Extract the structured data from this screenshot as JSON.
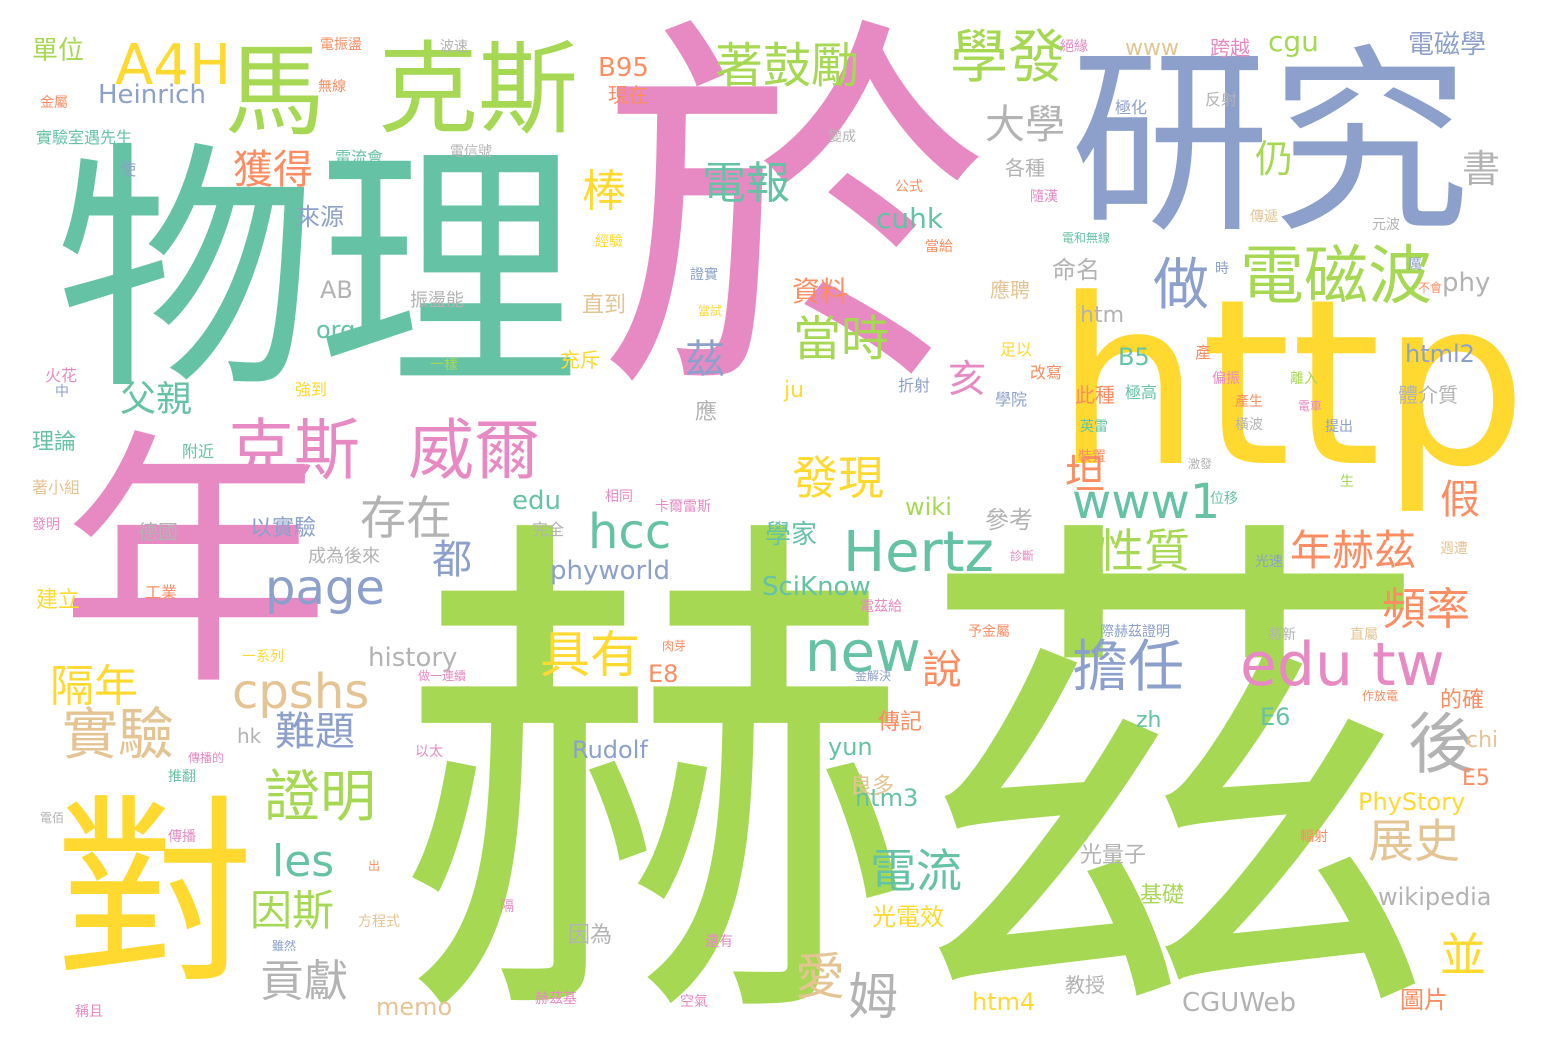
{
  "palette": {
    "green": "#a6d854",
    "teal": "#66c2a5",
    "pink": "#e78ac3",
    "blue": "#8da0cb",
    "yellow": "#ffd92f",
    "orange": "#fc8d62",
    "tan": "#e5c494",
    "gray": "#b3b3b3"
  },
  "words": [
    {
      "text": "於",
      "color": "pink"
    },
    {
      "text": "赫茲",
      "color": "green"
    },
    {
      "text": "物理",
      "color": "teal"
    },
    {
      "text": "研究",
      "color": "blue"
    },
    {
      "text": "年",
      "color": "pink"
    },
    {
      "text": "http",
      "color": "yellow"
    },
    {
      "text": "對",
      "color": "yellow"
    },
    {
      "text": "克斯",
      "color": "green"
    },
    {
      "text": "馬",
      "color": "green"
    },
    {
      "text": "A4H",
      "color": "yellow"
    },
    {
      "text": "學發",
      "color": "green"
    },
    {
      "text": "著鼓勵",
      "color": "green"
    },
    {
      "text": "電磁波",
      "color": "green"
    },
    {
      "text": "克斯",
      "color": "pink"
    },
    {
      "text": "威爾",
      "color": "pink"
    },
    {
      "text": "Hertz",
      "color": "teal"
    },
    {
      "text": "edu tw",
      "color": "pink"
    },
    {
      "text": "www1",
      "color": "teal"
    },
    {
      "text": "hcc",
      "color": "teal"
    },
    {
      "text": "page",
      "color": "blue"
    },
    {
      "text": "cpshs",
      "color": "tan"
    },
    {
      "text": "實驗",
      "color": "tan"
    },
    {
      "text": "證明",
      "color": "green"
    },
    {
      "text": "擔任",
      "color": "blue"
    },
    {
      "text": "new",
      "color": "teal"
    },
    {
      "text": "具有",
      "color": "yellow"
    },
    {
      "text": "後",
      "color": "gray"
    },
    {
      "text": "電報",
      "color": "teal"
    },
    {
      "text": "當時",
      "color": "green"
    },
    {
      "text": "做",
      "color": "blue"
    },
    {
      "text": "大學",
      "color": "gray"
    },
    {
      "text": "獲得",
      "color": "orange"
    },
    {
      "text": "棒",
      "color": "yellow"
    },
    {
      "text": "存在",
      "color": "gray"
    },
    {
      "text": "發現",
      "color": "yellow"
    },
    {
      "text": "性質",
      "color": "green"
    },
    {
      "text": "年赫茲",
      "color": "orange"
    },
    {
      "text": "頻率",
      "color": "orange"
    },
    {
      "text": "隔年",
      "color": "yellow"
    },
    {
      "text": "難題",
      "color": "blue"
    },
    {
      "text": "電流",
      "color": "teal"
    },
    {
      "text": "展史",
      "color": "tan"
    },
    {
      "text": "愛",
      "color": "tan"
    },
    {
      "text": "姆",
      "color": "gray"
    },
    {
      "text": "貢獻",
      "color": "gray"
    },
    {
      "text": "因斯",
      "color": "green"
    },
    {
      "text": "les",
      "color": "teal"
    },
    {
      "text": "並",
      "color": "yellow"
    },
    {
      "text": "都",
      "color": "blue"
    },
    {
      "text": "坦",
      "color": "orange"
    },
    {
      "text": "假",
      "color": "orange"
    },
    {
      "text": "父親",
      "color": "teal"
    },
    {
      "text": "亥",
      "color": "pink"
    },
    {
      "text": "茲",
      "color": "blue"
    },
    {
      "text": "仍",
      "color": "green"
    },
    {
      "text": "書",
      "color": "gray"
    },
    {
      "text": "說",
      "color": "orange"
    },
    {
      "text": "Heinrich",
      "color": "blue"
    },
    {
      "text": "B95",
      "color": "orange"
    },
    {
      "text": "cgu",
      "color": "green"
    },
    {
      "text": "www",
      "color": "tan"
    },
    {
      "text": "跨越",
      "color": "pink"
    },
    {
      "text": "電磁學",
      "color": "blue"
    },
    {
      "text": "單位",
      "color": "green"
    },
    {
      "text": "現在",
      "color": "orange"
    },
    {
      "text": "來源",
      "color": "blue"
    },
    {
      "text": "cuhk",
      "color": "teal"
    },
    {
      "text": "資料",
      "color": "orange"
    },
    {
      "text": "AB",
      "color": "gray"
    },
    {
      "text": "org",
      "color": "teal"
    },
    {
      "text": "命名",
      "color": "gray"
    },
    {
      "text": "htm",
      "color": "gray"
    },
    {
      "text": "B5",
      "color": "teal"
    },
    {
      "text": "html2",
      "color": "blue"
    },
    {
      "text": "phy",
      "color": "gray"
    },
    {
      "text": "直到",
      "color": "tan"
    },
    {
      "text": "應聘",
      "color": "tan"
    },
    {
      "text": "理論",
      "color": "teal"
    },
    {
      "text": "以實驗",
      "color": "blue"
    },
    {
      "text": "成為後來",
      "color": "gray"
    },
    {
      "text": "德國",
      "color": "gray"
    },
    {
      "text": "建立",
      "color": "yellow"
    },
    {
      "text": "edu",
      "color": "teal"
    },
    {
      "text": "wiki",
      "color": "green"
    },
    {
      "text": "參考",
      "color": "gray"
    },
    {
      "text": "學家",
      "color": "teal"
    },
    {
      "text": "SciKnow",
      "color": "teal"
    },
    {
      "text": "phyworld",
      "color": "blue"
    },
    {
      "text": "history",
      "color": "gray"
    },
    {
      "text": "E8",
      "color": "orange"
    },
    {
      "text": "Rudolf",
      "color": "blue"
    },
    {
      "text": "yun",
      "color": "teal"
    },
    {
      "text": "zh",
      "color": "teal"
    },
    {
      "text": "E6",
      "color": "teal"
    },
    {
      "text": "chi",
      "color": "tan"
    },
    {
      "text": "E5",
      "color": "orange"
    },
    {
      "text": "PhyStory",
      "color": "yellow"
    },
    {
      "text": "htm3",
      "color": "teal"
    },
    {
      "text": "傳記",
      "color": "orange"
    },
    {
      "text": "良多",
      "color": "tan"
    },
    {
      "text": "光電效",
      "color": "yellow"
    },
    {
      "text": "光量子",
      "color": "gray"
    },
    {
      "text": "基礎",
      "color": "green"
    },
    {
      "text": "wikipedia",
      "color": "gray"
    },
    {
      "text": "CGUWeb",
      "color": "gray"
    },
    {
      "text": "圖片",
      "color": "orange"
    },
    {
      "text": "htm4",
      "color": "yellow"
    },
    {
      "text": "memo",
      "color": "tan"
    },
    {
      "text": "因為",
      "color": "gray"
    },
    {
      "text": "教授",
      "color": "gray"
    },
    {
      "text": "ju",
      "color": "yellow"
    },
    {
      "text": "hk",
      "color": "gray"
    },
    {
      "text": "應",
      "color": "gray"
    },
    {
      "text": "各種",
      "color": "gray"
    },
    {
      "text": "此種",
      "color": "orange"
    },
    {
      "text": "的確",
      "color": "orange"
    },
    {
      "text": "體介質",
      "color": "gray"
    },
    {
      "text": "充斥",
      "color": "yellow"
    },
    {
      "text": "振盪能",
      "color": "gray"
    },
    {
      "text": "學院",
      "color": "blue"
    },
    {
      "text": "折射",
      "color": "blue"
    },
    {
      "text": "足以",
      "color": "yellow"
    },
    {
      "text": "極高",
      "color": "teal"
    },
    {
      "text": "改寫",
      "color": "orange"
    },
    {
      "text": "產",
      "color": "orange"
    },
    {
      "text": "火花",
      "color": "pink"
    },
    {
      "text": "中",
      "color": "blue"
    },
    {
      "text": "附近",
      "color": "teal"
    },
    {
      "text": "著小組",
      "color": "tan"
    },
    {
      "text": "強到",
      "color": "yellow"
    },
    {
      "text": "一樣",
      "color": "green"
    },
    {
      "text": "發明",
      "color": "pink"
    },
    {
      "text": "完全",
      "color": "gray"
    },
    {
      "text": "卡爾雷斯",
      "color": "pink"
    },
    {
      "text": "相同",
      "color": "pink"
    },
    {
      "text": "工業",
      "color": "orange"
    },
    {
      "text": "電振盪",
      "color": "orange"
    },
    {
      "text": "波速",
      "color": "gray"
    },
    {
      "text": "絕緣",
      "color": "pink"
    },
    {
      "text": "金屬",
      "color": "orange"
    },
    {
      "text": "實驗室遇先生",
      "color": "teal"
    },
    {
      "text": "使",
      "color": "blue"
    },
    {
      "text": "電流會",
      "color": "teal"
    },
    {
      "text": "電信號",
      "color": "gray"
    },
    {
      "text": "無線",
      "color": "orange"
    },
    {
      "text": "變成",
      "color": "gray"
    },
    {
      "text": "極化",
      "color": "blue"
    },
    {
      "text": "反射",
      "color": "gray"
    },
    {
      "text": "公式",
      "color": "orange"
    },
    {
      "text": "隨漢",
      "color": "pink"
    },
    {
      "text": "傳遞",
      "color": "tan"
    },
    {
      "text": "元波",
      "color": "gray"
    },
    {
      "text": "電和無線",
      "color": "teal"
    },
    {
      "text": "經驗",
      "color": "yellow"
    },
    {
      "text": "當給",
      "color": "orange"
    },
    {
      "text": "證實",
      "color": "blue"
    },
    {
      "text": "時",
      "color": "blue"
    },
    {
      "text": "厲",
      "color": "blue"
    },
    {
      "text": "不會",
      "color": "orange"
    },
    {
      "text": "當試",
      "color": "yellow"
    },
    {
      "text": "偏振",
      "color": "pink"
    },
    {
      "text": "離入",
      "color": "green"
    },
    {
      "text": "產生",
      "color": "orange"
    },
    {
      "text": "英雷",
      "color": "teal"
    },
    {
      "text": "電車",
      "color": "pink"
    },
    {
      "text": "橫波",
      "color": "gray"
    },
    {
      "text": "提出",
      "color": "blue"
    },
    {
      "text": "裝置",
      "color": "orange"
    },
    {
      "text": "激發",
      "color": "gray"
    },
    {
      "text": "生",
      "color": "green"
    },
    {
      "text": "位移",
      "color": "teal"
    },
    {
      "text": "光速",
      "color": "blue"
    },
    {
      "text": "週遭",
      "color": "tan"
    },
    {
      "text": "電茲給",
      "color": "pink"
    },
    {
      "text": "予金屬",
      "color": "orange"
    },
    {
      "text": "際赫茲證明",
      "color": "blue"
    },
    {
      "text": "將新",
      "color": "gray"
    },
    {
      "text": "直屬",
      "color": "tan"
    },
    {
      "text": "肉芽",
      "color": "orange"
    },
    {
      "text": "一系列",
      "color": "yellow"
    },
    {
      "text": "做一連續",
      "color": "pink"
    },
    {
      "text": "金解決",
      "color": "blue"
    },
    {
      "text": "作放電",
      "color": "orange"
    },
    {
      "text": "以太",
      "color": "pink"
    },
    {
      "text": "傳播",
      "color": "pink"
    },
    {
      "text": "推翻",
      "color": "teal"
    },
    {
      "text": "傳播的",
      "color": "pink"
    },
    {
      "text": "電佰",
      "color": "gray"
    },
    {
      "text": "出",
      "color": "orange"
    },
    {
      "text": "方程式",
      "color": "tan"
    },
    {
      "text": "隔",
      "color": "pink"
    },
    {
      "text": "還有",
      "color": "pink"
    },
    {
      "text": "輻射",
      "color": "orange"
    },
    {
      "text": "雖然",
      "color": "blue"
    },
    {
      "text": "赫茲基",
      "color": "pink"
    },
    {
      "text": "空氣",
      "color": "pink"
    },
    {
      "text": "稱且",
      "color": "pink"
    },
    {
      "text": "診斷",
      "color": "pink"
    }
  ]
}
